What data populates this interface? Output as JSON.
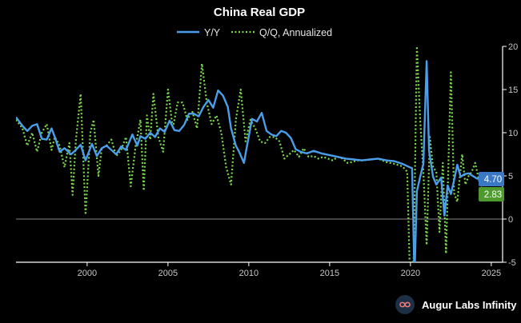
{
  "chart_data": {
    "type": "line",
    "title": "China Real GDP",
    "xlabel": "",
    "ylabel": "",
    "xlim": [
      1995.6,
      2025.7
    ],
    "ylim": [
      -5,
      20
    ],
    "x_ticks": [
      2000,
      2005,
      2010,
      2015,
      2020,
      2025
    ],
    "y_ticks": [
      -5,
      0,
      5,
      10,
      15,
      20
    ],
    "legend": {
      "placement": "top-center"
    },
    "grid": false,
    "series": [
      {
        "name": "Y/Y",
        "color": "#4a9eea",
        "style": "solid",
        "last_value_label": "4.70",
        "x": [
          1995.6,
          1996.0,
          1996.3,
          1996.6,
          1996.9,
          1997.2,
          1997.5,
          1997.8,
          1998.0,
          1998.3,
          1998.6,
          1999.0,
          1999.3,
          1999.6,
          1999.9,
          2000.3,
          2000.6,
          2000.9,
          2001.2,
          2001.5,
          2001.8,
          2002.1,
          2002.4,
          2002.8,
          2003.1,
          2003.3,
          2003.6,
          2003.9,
          2004.2,
          2004.5,
          2004.8,
          2005.1,
          2005.4,
          2005.7,
          2006.0,
          2006.3,
          2006.6,
          2006.9,
          2007.2,
          2007.5,
          2007.8,
          2008.1,
          2008.4,
          2008.7,
          2008.9,
          2009.2,
          2009.4,
          2009.7,
          2009.9,
          2010.2,
          2010.5,
          2010.8,
          2011.1,
          2011.4,
          2011.7,
          2012.0,
          2012.3,
          2012.6,
          2012.9,
          2013.2,
          2013.6,
          2014.0,
          2014.5,
          2015.0,
          2015.5,
          2016.0,
          2016.5,
          2017.0,
          2017.5,
          2018.0,
          2018.5,
          2019.0,
          2019.5,
          2019.95,
          2020.1,
          2020.25,
          2020.4,
          2020.6,
          2020.8,
          2021.0,
          2021.15,
          2021.4,
          2021.6,
          2021.9,
          2022.1,
          2022.3,
          2022.5,
          2022.7,
          2022.9,
          2023.1,
          2023.35,
          2023.6,
          2023.85,
          2024.1,
          2024.35,
          2024.6
        ],
        "y": [
          11.8,
          10.8,
          10.2,
          10.8,
          11.0,
          9.3,
          9.2,
          10.5,
          9.5,
          7.8,
          8.2,
          7.5,
          8.0,
          8.6,
          6.8,
          8.7,
          7.3,
          8.2,
          8.5,
          8.0,
          7.5,
          8.4,
          8.0,
          9.8,
          8.5,
          9.6,
          9.3,
          10.0,
          9.5,
          10.5,
          10.1,
          11.4,
          10.3,
          10.2,
          10.9,
          12.2,
          12.2,
          11.9,
          13.0,
          13.8,
          12.9,
          14.9,
          14.3,
          13.0,
          10.5,
          8.5,
          7.8,
          6.5,
          8.6,
          11.6,
          11.3,
          12.3,
          10.2,
          9.8,
          9.6,
          10.2,
          10.0,
          9.4,
          8.1,
          7.8,
          7.6,
          7.9,
          7.6,
          7.4,
          7.2,
          7.0,
          6.9,
          6.8,
          6.9,
          7.0,
          6.8,
          6.7,
          6.4,
          6.0,
          5.9,
          -6.8,
          3.2,
          4.9,
          6.4,
          18.3,
          7.9,
          4.9,
          4.0,
          4.8,
          0.4,
          3.9,
          2.9,
          4.5,
          6.3,
          4.9,
          5.2,
          5.3,
          5.0,
          4.7,
          4.6,
          4.7
        ]
      },
      {
        "name": "Q/Q, Annualized",
        "color": "#7dd94f",
        "style": "dotted",
        "last_value_label": "2.83",
        "x": [
          1995.6,
          1996.0,
          1996.3,
          1996.6,
          1996.9,
          1997.2,
          1997.5,
          1997.8,
          1998.0,
          1998.3,
          1998.6,
          1998.9,
          1999.1,
          1999.3,
          1999.6,
          1999.9,
          2000.2,
          2000.4,
          2000.7,
          2000.9,
          2001.2,
          2001.5,
          2001.8,
          2002.1,
          2002.4,
          2002.7,
          2003.0,
          2003.3,
          2003.5,
          2003.7,
          2003.9,
          2004.1,
          2004.4,
          2004.7,
          2005.0,
          2005.3,
          2005.6,
          2005.9,
          2006.2,
          2006.5,
          2006.8,
          2007.1,
          2007.4,
          2007.7,
          2008.0,
          2008.3,
          2008.6,
          2008.9,
          2009.2,
          2009.5,
          2009.8,
          2010.1,
          2010.4,
          2010.7,
          2011.0,
          2011.3,
          2011.6,
          2011.9,
          2012.2,
          2012.5,
          2012.8,
          2013.1,
          2013.4,
          2013.7,
          2014.0,
          2014.3,
          2014.6,
          2014.9,
          2015.2,
          2015.5,
          2015.8,
          2016.1,
          2016.4,
          2016.7,
          2017.0,
          2017.5,
          2018.0,
          2018.5,
          2019.0,
          2019.5,
          2019.8,
          2020.0,
          2020.2,
          2020.4,
          2020.6,
          2020.8,
          2021.0,
          2021.2,
          2021.4,
          2021.6,
          2021.8,
          2022.0,
          2022.2,
          2022.5,
          2022.7,
          2022.9,
          2023.2,
          2023.4,
          2023.6,
          2023.8,
          2024.0,
          2024.3,
          2024.6
        ],
        "y": [
          11.5,
          10.5,
          8.5,
          10.0,
          7.8,
          10.0,
          11.0,
          8.0,
          9.5,
          8.5,
          6.0,
          8.8,
          2.8,
          9.0,
          14.5,
          0.5,
          10.0,
          11.5,
          5.0,
          8.2,
          8.5,
          9.2,
          7.3,
          8.0,
          9.5,
          3.8,
          8.5,
          11.5,
          3.3,
          12.0,
          9.2,
          14.5,
          9.5,
          7.8,
          15.0,
          10.5,
          13.5,
          13.5,
          11.5,
          12.5,
          10.5,
          18.0,
          13.5,
          11.0,
          12.0,
          10.0,
          6.0,
          4.0,
          11.5,
          15.0,
          9.0,
          11.5,
          10.5,
          9.0,
          8.8,
          9.5,
          9.5,
          9.0,
          7.0,
          7.5,
          8.0,
          7.2,
          8.2,
          7.2,
          7.3,
          7.0,
          7.2,
          7.0,
          6.8,
          7.2,
          7.0,
          6.5,
          6.6,
          6.8,
          6.8,
          6.9,
          7.0,
          6.6,
          6.4,
          6.1,
          5.5,
          -9.0,
          -4.5,
          20.0,
          11.5,
          5.5,
          -3.0,
          9.5,
          6.0,
          5.5,
          -1.5,
          6.5,
          -4.0,
          17.0,
          3.0,
          2.0,
          7.5,
          4.0,
          5.0,
          5.5,
          6.5,
          4.0,
          2.83
        ]
      }
    ]
  },
  "brand": {
    "name": "Augur Labs Infinity",
    "logo_icon": "infinity-logo-icon"
  },
  "colors": {
    "background": "#000000",
    "axis": "#ffffff",
    "zero_line": "#888888",
    "yy_badge": "#3b78c4",
    "qq_badge": "#4e9a2f"
  }
}
